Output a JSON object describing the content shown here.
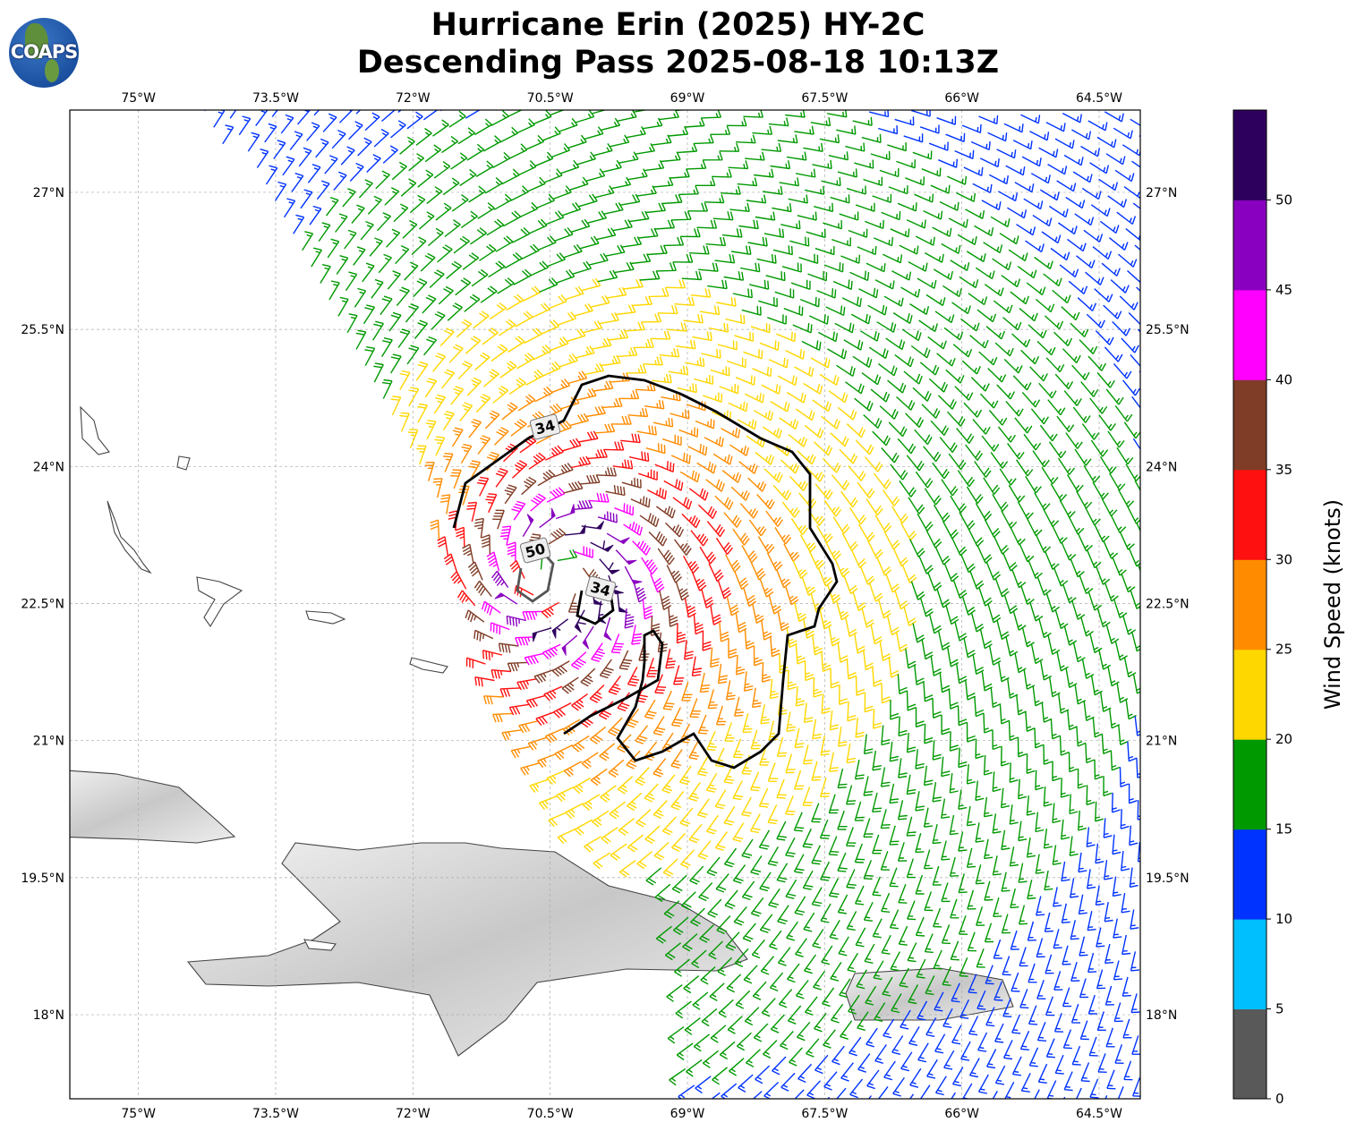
{
  "title_line1": "Hurricane Erin (2025) HY-2C",
  "title_line2": "Descending Pass 2025-08-18 10:13Z",
  "logo_text": "COAPS",
  "chart_data": {
    "type": "wind-barb-map",
    "lon_ticks": [
      "75°W",
      "73.5°W",
      "72°W",
      "70.5°W",
      "69°W",
      "67.5°W",
      "66°W",
      "64.5°W"
    ],
    "lon_values": [
      -75,
      -73.5,
      -72,
      -70.5,
      -69,
      -67.5,
      -66,
      -64.5
    ],
    "lat_ticks": [
      "27°N",
      "25.5°N",
      "24°N",
      "22.5°N",
      "21°N",
      "19.5°N",
      "18°N"
    ],
    "lat_values": [
      27,
      25.5,
      24,
      22.5,
      21,
      19.5,
      18
    ],
    "lon_range": [
      -75.75,
      -64.05
    ],
    "lat_range": [
      17.08,
      27.9
    ],
    "grid": true,
    "storm_center": {
      "lon": -70.45,
      "lat": 22.8
    },
    "max_wind_kt": 55,
    "radius_max_wind_deg": 0.5,
    "contours": [
      {
        "label": "34"
      },
      {
        "label": "50"
      },
      {
        "label": "34"
      }
    ],
    "colorbar": {
      "label": "Wind Speed (knots)",
      "bounds": [
        0,
        5,
        10,
        15,
        20,
        25,
        30,
        35,
        40,
        45,
        50,
        55
      ],
      "tick_labels": [
        "0",
        "5",
        "10",
        "15",
        "20",
        "25",
        "30",
        "35",
        "40",
        "45",
        "50"
      ],
      "colors": [
        "#595959",
        "#00bfff",
        "#0033ff",
        "#009900",
        "#ffd700",
        "#ff8c00",
        "#ff1010",
        "#7f3c26",
        "#ff00ff",
        "#8a00c0",
        "#2e005e"
      ]
    }
  }
}
